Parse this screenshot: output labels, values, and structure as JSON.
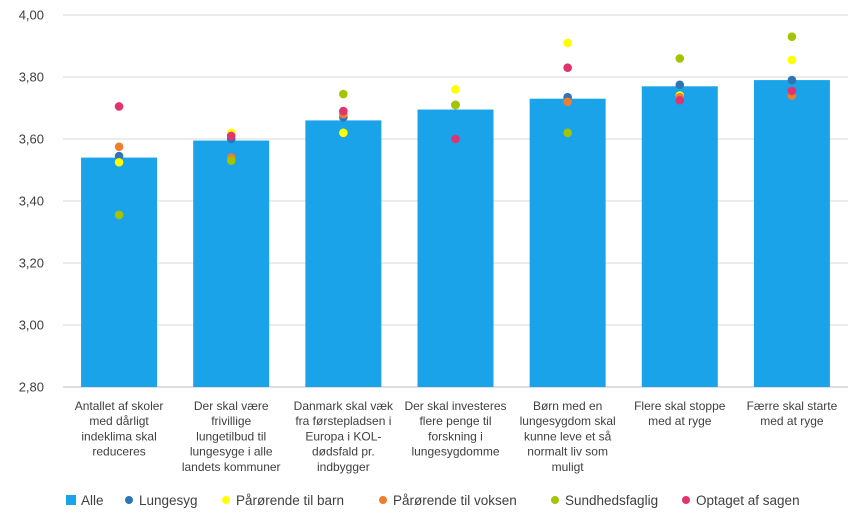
{
  "chart_data": {
    "type": "bar",
    "categories": [
      [
        "Antallet af skoler",
        "med dårligt",
        "indeklima skal",
        "reduceres"
      ],
      [
        "Der skal være",
        "frivillige",
        "lungetilbud til",
        "lungesyge i alle",
        "landets kommuner"
      ],
      [
        "Danmark skal væk",
        "fra førstepladsen i",
        "Europa i KOL-",
        "dødsfald pr.",
        "indbygger"
      ],
      [
        "Der skal investeres",
        "flere penge til",
        "forskning i",
        "lungesygdomme"
      ],
      [
        "Børn med en",
        "lungesygdom skal",
        "kunne leve et så",
        "normalt liv som",
        "muligt"
      ],
      [
        "Flere skal stoppe",
        "med at ryge"
      ],
      [
        "Færre skal starte",
        "med at ryge"
      ]
    ],
    "ylim": [
      2.8,
      4.0
    ],
    "yticks": [
      "2,80",
      "3,00",
      "3,20",
      "3,40",
      "3,60",
      "3,80",
      "4,00"
    ],
    "ytick_values": [
      2.8,
      3.0,
      3.2,
      3.4,
      3.6,
      3.8,
      4.0
    ],
    "grid": true,
    "legend_position": "bottom",
    "series": [
      {
        "name": "Alle",
        "kind": "bar",
        "color": "#1aa3e8",
        "values": [
          3.54,
          3.595,
          3.66,
          3.695,
          3.73,
          3.77,
          3.79
        ]
      },
      {
        "name": "Lungesyg",
        "kind": "dot",
        "color": "#2e75b6",
        "values": [
          3.545,
          3.6,
          3.67,
          3.71,
          3.735,
          3.775,
          3.79
        ]
      },
      {
        "name": "Pårørende til barn",
        "kind": "dot",
        "color": "#ffff00",
        "values": [
          3.525,
          3.62,
          3.62,
          3.76,
          3.91,
          3.74,
          3.855
        ]
      },
      {
        "name": "Pårørende til voksen",
        "kind": "dot",
        "color": "#ed7d31",
        "values": [
          3.575,
          3.54,
          3.68,
          3.71,
          3.72,
          3.735,
          3.74
        ]
      },
      {
        "name": "Sundhedsfaglig",
        "kind": "dot",
        "color": "#a5c400",
        "values": [
          3.355,
          3.53,
          3.745,
          3.71,
          3.62,
          3.86,
          3.93
        ]
      },
      {
        "name": "Optaget af sagen",
        "kind": "dot",
        "color": "#e0336f",
        "values": [
          3.705,
          3.61,
          3.69,
          3.6,
          3.83,
          3.725,
          3.755
        ]
      }
    ]
  }
}
